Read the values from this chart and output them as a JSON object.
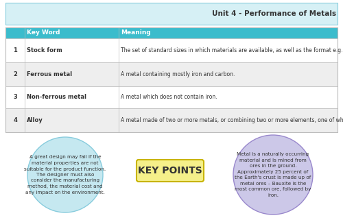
{
  "title": "Unit 4 - Performance of Metals",
  "header_bg": "#3bbccc",
  "header_text_color": "#ffffff",
  "table_header": [
    "Key Word",
    "Meaning"
  ],
  "rows": [
    {
      "num": "1",
      "key": "Stock form",
      "meaning": "The set of standard sizes in which materials are available, as well as the format e.g. powders, granules, sheets etc."
    },
    {
      "num": "2",
      "key": "Ferrous metal",
      "meaning": "A metal containing mostly iron and carbon."
    },
    {
      "num": "3",
      "key": "Non-ferrous metal",
      "meaning": "A metal which does not contain iron."
    },
    {
      "num": "4",
      "key": "Alloy",
      "meaning": "A metal made of two or more metals, or combining two or more elements, one of which must be a metal."
    }
  ],
  "row_alt_color": "#eeeeee",
  "row_color": "#ffffff",
  "border_color": "#bbbbbb",
  "top_bar_color": "#d6f0f5",
  "top_bar_edge": "#88ccdd",
  "circle_left_color": "#c5e8f0",
  "circle_left_edge": "#88ccdd",
  "circle_right_color": "#ccc8e8",
  "circle_right_edge": "#9988cc",
  "circle_left_text": "A great design may fail if the\nmaterial properties are not\nsuitable for the product function.\nThe designer must also\nconsider the manufacturing\nmethod, the material cost and\nany impact on the environment.",
  "circle_right_text": "Metal is a naturally occurring\nmaterial and is mined from\nores in the ground.\nApproximately 25 percent of\nthe Earth's crust is made up of\nmetal ores – Bauxite is the\nmost common ore, followed by\niron.",
  "key_points_text": "KEY POINTS",
  "key_points_bg": "#f5f08a",
  "key_points_border": "#c8b400",
  "text_color": "#333333",
  "background_color": "#ffffff",
  "title_fontsize": 7.5,
  "header_fontsize": 6.5,
  "key_fontsize": 6.0,
  "meaning_fontsize": 5.5,
  "circle_fontsize": 5.2,
  "kp_fontsize": 10.0
}
